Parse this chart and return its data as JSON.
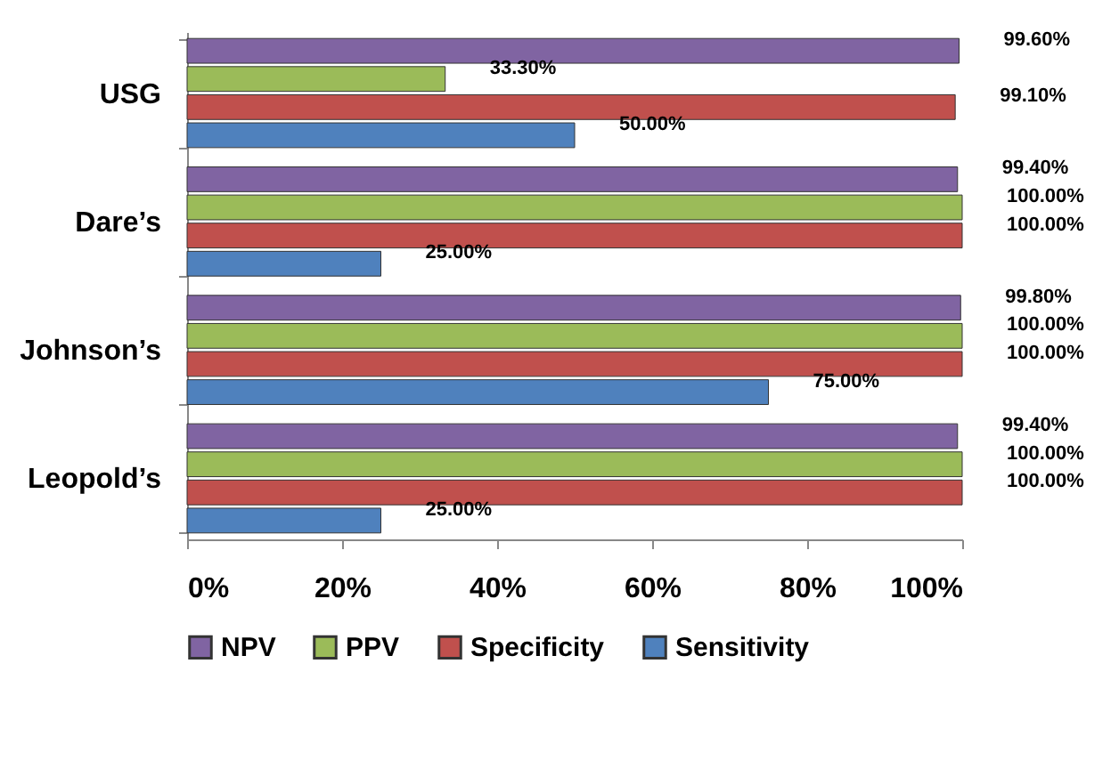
{
  "chart_data": {
    "type": "bar",
    "orientation": "horizontal",
    "categories": [
      "USG",
      "Dare’s",
      "Johnson’s",
      "Leopold’s"
    ],
    "series": [
      {
        "name": "NPV",
        "color": "#8064a2",
        "values": [
          99.6,
          99.4,
          99.8,
          99.4
        ],
        "value_labels": [
          "99.60%",
          "99.40%",
          "99.80%",
          "99.40%"
        ]
      },
      {
        "name": "PPV",
        "color": "#9bbb59",
        "values": [
          33.3,
          100,
          100,
          100
        ],
        "value_labels": [
          "33.30%",
          "100.00%",
          "100.00%",
          "100.00%"
        ]
      },
      {
        "name": "Specificity",
        "color": "#c0504d",
        "values": [
          99.1,
          100,
          100,
          100
        ],
        "value_labels": [
          "99.10%",
          "100.00%",
          "100.00%",
          "100.00%"
        ]
      },
      {
        "name": "Sensitivity",
        "color": "#4f81bd",
        "values": [
          50,
          25,
          75,
          25
        ],
        "value_labels": [
          "50.00%",
          "25.00%",
          "75.00%",
          "25.00%"
        ]
      }
    ],
    "xlim": [
      0,
      100
    ],
    "xticks": [
      {
        "value": 0,
        "label": "0%"
      },
      {
        "value": 20,
        "label": "20%"
      },
      {
        "value": 40,
        "label": "40%"
      },
      {
        "value": 60,
        "label": "60%"
      },
      {
        "value": 80,
        "label": "80%"
      },
      {
        "value": 100,
        "label": "100%"
      }
    ],
    "grid": false,
    "legend": "bottom"
  }
}
